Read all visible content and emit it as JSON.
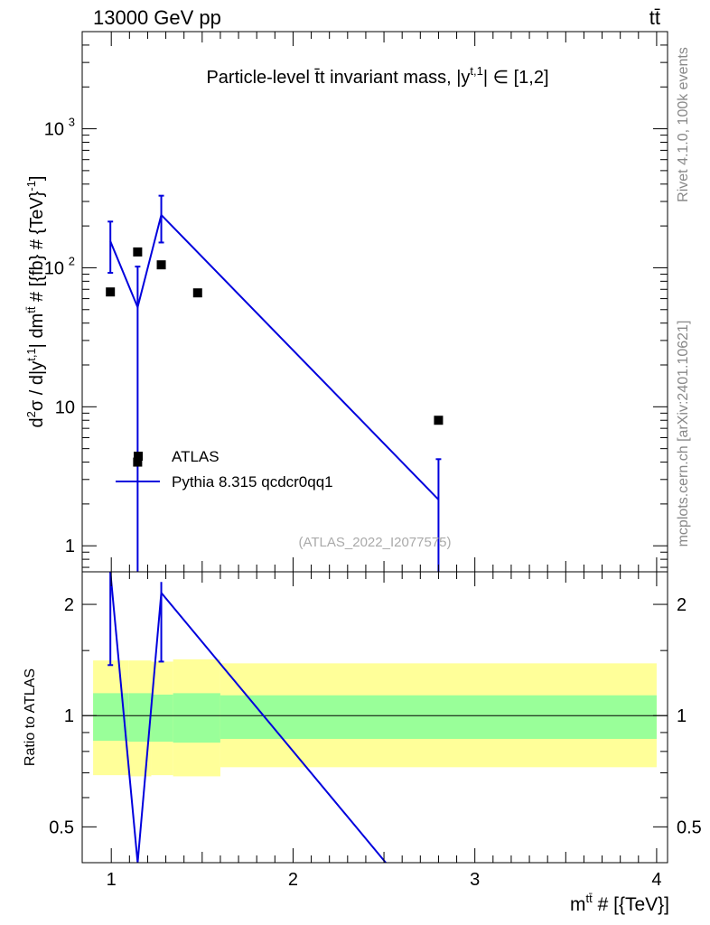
{
  "header": {
    "energy_label": "13000 GeV pp",
    "process_label": "tt̄"
  },
  "side": {
    "rivet_label": "Rivet 4.1.0,  100k events",
    "source_label": "mcplots.cern.ch [arXiv:2401.10621]"
  },
  "chart_data": [
    {
      "type": "line",
      "title": "Particle-level t̄t invariant mass, |y^{t,1}| ∈ [1,2]",
      "title_main": "Particle-level t̄t invariant mass, |y",
      "title_sup": "t,1",
      "title_tail": "| ∈ [1,2]",
      "ylabel": "d²σ / d|y^{t,1}| dm^{tt̄} # [{fb} # {TeV}^{-1}]",
      "ylabel_parts": {
        "a": "d",
        "a_sup": "2",
        "b": "σ / d|y",
        "b_sup": "t,1",
        "c": "| dm",
        "c_sup": "tt̄",
        "d": " # [{fb} # {TeV}",
        "d_sup": "-1",
        "e": "]"
      },
      "yscale": "log",
      "ylim": [
        0.65,
        5000
      ],
      "xlim": [
        0.84,
        4.06
      ],
      "yticks": [
        {
          "value": 1,
          "label": "1"
        },
        {
          "value": 10,
          "label": "10"
        },
        {
          "value": 100,
          "label": "10",
          "sup": "2"
        },
        {
          "value": 1000,
          "label": "10",
          "sup": "3"
        }
      ],
      "watermark": "(ATLAS_2022_I2077575)",
      "legend": {
        "placement": "lower-left",
        "data_label": "ATLAS",
        "mc_label": "Pythia 8.315 qcdcr0qq1"
      },
      "series": [
        {
          "name": "ATLAS",
          "marker": "square",
          "color": "#000000",
          "points": [
            {
              "x": 0.995,
              "y": 67
            },
            {
              "x": 1.145,
              "y": 4
            },
            {
              "x": 1.145,
              "y": 130
            },
            {
              "x": 1.275,
              "y": 105
            },
            {
              "x": 1.475,
              "y": 66
            },
            {
              "x": 2.8,
              "y": 8
            }
          ]
        },
        {
          "name": "Pythia 8.315 qcdcr0qq1",
          "color": "#0000dd",
          "points": [
            {
              "x": 0.995,
              "y": 155,
              "ylo": 92,
              "yhi": 215
            },
            {
              "x": 1.145,
              "y": 52,
              "ylo": 0.65,
              "yhi": 102
            },
            {
              "x": 1.275,
              "y": 240,
              "ylo": 152,
              "yhi": 330
            },
            {
              "x": 2.8,
              "y": 2.15,
              "ylo": 0.65,
              "yhi": 4.2
            }
          ]
        }
      ]
    },
    {
      "type": "line",
      "ylabel": "Ratio to ATLAS",
      "xlabel": "m^{tt̄} # [{TeV}]",
      "xlabel_main": "m",
      "xlabel_sup": "tt̄",
      "xlabel_tail": " # [{TeV}]",
      "yscale": "log",
      "ylim": [
        0.4,
        2.45
      ],
      "xlim": [
        0.84,
        4.06
      ],
      "xticks": [
        {
          "value": 1,
          "label": "1"
        },
        {
          "value": 2,
          "label": "2"
        },
        {
          "value": 3,
          "label": "3"
        },
        {
          "value": 4,
          "label": "4"
        }
      ],
      "yticks": [
        {
          "value": 0.5,
          "label": "0.5"
        },
        {
          "value": 1,
          "label": "1"
        },
        {
          "value": 2,
          "label": "2"
        }
      ],
      "bands": [
        {
          "xlo": 0.9,
          "xhi": 1.095,
          "inner": [
            0.855,
            1.15
          ],
          "outer": [
            0.69,
            1.41
          ]
        },
        {
          "xlo": 1.095,
          "xhi": 1.22,
          "inner": [
            0.85,
            1.15
          ],
          "outer": [
            0.685,
            1.41
          ]
        },
        {
          "xlo": 1.22,
          "xhi": 1.34,
          "inner": [
            0.85,
            1.14
          ],
          "outer": [
            0.69,
            1.4
          ]
        },
        {
          "xlo": 1.34,
          "xhi": 1.6,
          "inner": [
            0.845,
            1.15
          ],
          "outer": [
            0.685,
            1.42
          ]
        },
        {
          "xlo": 1.6,
          "xhi": 4.0,
          "inner": [
            0.865,
            1.135
          ],
          "outer": [
            0.725,
            1.385
          ]
        }
      ],
      "band_colors": {
        "inner": "#99ff99",
        "outer": "#ffff99"
      },
      "reference": 1,
      "ratio_line": {
        "color": "#0000dd",
        "points": [
          {
            "x": 0.995,
            "y": 2.45
          },
          {
            "x": 1.145,
            "y": 0.4
          },
          {
            "x": 1.275,
            "y": 2.15
          },
          {
            "x": 2.51,
            "y": 0.4
          }
        ],
        "errors": [
          {
            "x": 0.995,
            "ylo": 1.37,
            "yhi": 2.45
          },
          {
            "x": 1.275,
            "ylo": 1.4,
            "yhi": 2.3
          }
        ]
      }
    }
  ]
}
